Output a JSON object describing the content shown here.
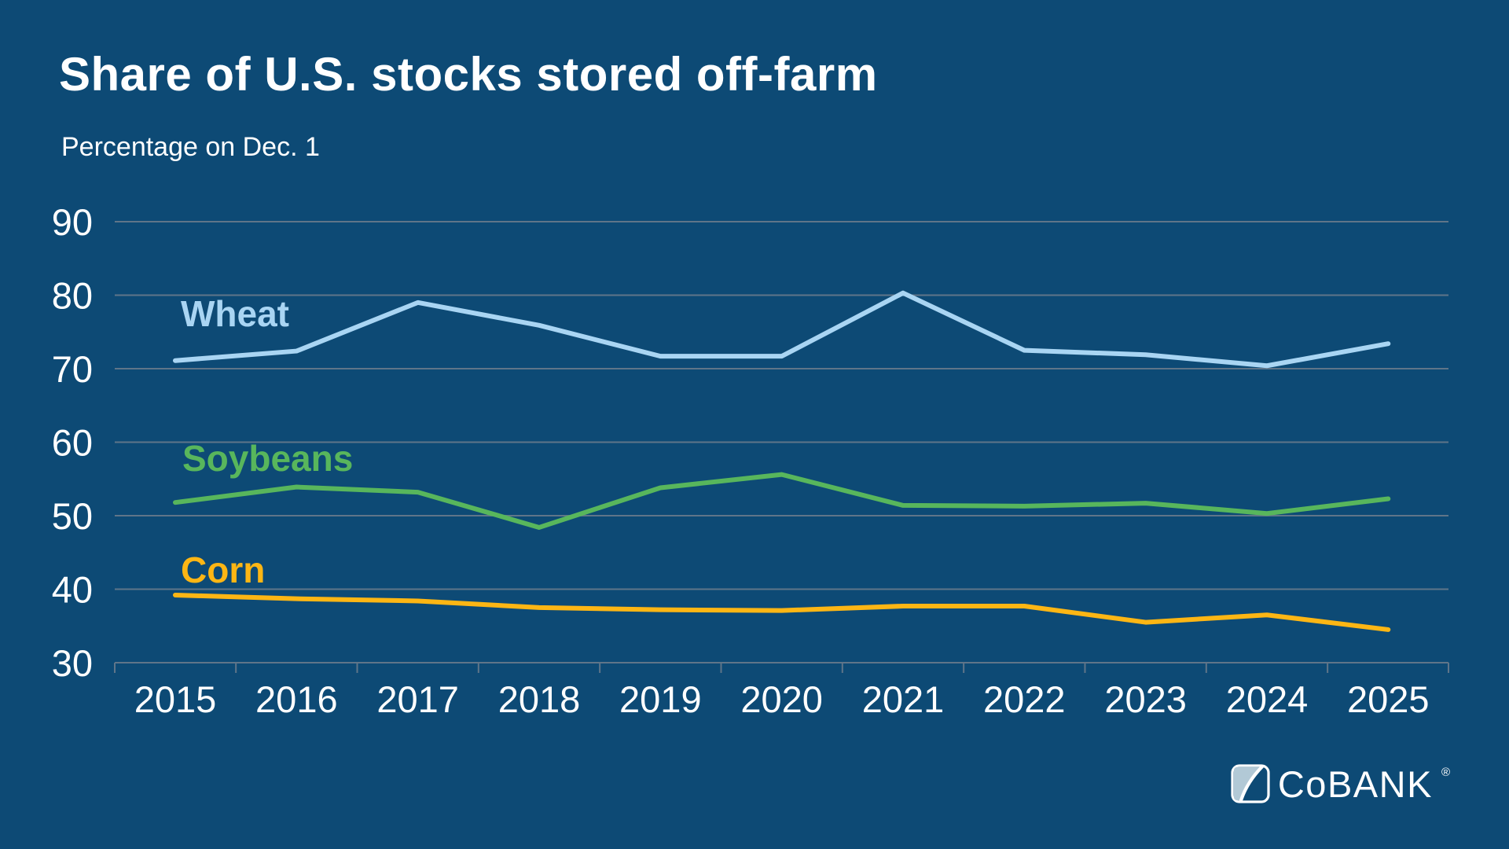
{
  "header": {
    "title": "Share of U.S. stocks stored off-farm",
    "subtitle": "Percentage on Dec. 1"
  },
  "colors": {
    "background": "#0d4a75",
    "gridline": "#5f7589",
    "text": "#ffffff",
    "wheat": "#a9d5f3",
    "soybeans": "#58b65c",
    "corn": "#fdb614",
    "logo_triangle": "#b2c9d6"
  },
  "chart_data": {
    "type": "line",
    "title": "Share of U.S. stocks stored off-farm",
    "subtitle": "Percentage on Dec. 1",
    "categories": [
      "2015",
      "2016",
      "2017",
      "2018",
      "2019",
      "2020",
      "2021",
      "2022",
      "2023",
      "2024",
      "2025"
    ],
    "series": [
      {
        "name": "Wheat",
        "color": "#a9d5f3",
        "values": [
          71.1,
          72.4,
          79.0,
          75.9,
          71.7,
          71.7,
          80.3,
          72.5,
          71.9,
          70.4,
          73.4
        ]
      },
      {
        "name": "Soybeans",
        "color": "#58b65c",
        "values": [
          51.8,
          53.9,
          53.2,
          48.4,
          53.8,
          55.6,
          51.4,
          51.3,
          51.7,
          50.3,
          52.3
        ]
      },
      {
        "name": "Corn",
        "color": "#fdb614",
        "values": [
          39.2,
          38.7,
          38.4,
          37.5,
          37.2,
          37.1,
          37.7,
          37.7,
          35.5,
          36.5,
          34.5
        ]
      }
    ],
    "yticks": [
      90,
      80,
      70,
      60,
      50,
      40,
      30
    ],
    "ylim": [
      30,
      95
    ],
    "xlabel": "",
    "ylabel": "Percentage on Dec. 1",
    "grid": true,
    "legend_position": "inline-labels-left"
  },
  "logo": {
    "text": "CoBANK",
    "registered": "®"
  }
}
